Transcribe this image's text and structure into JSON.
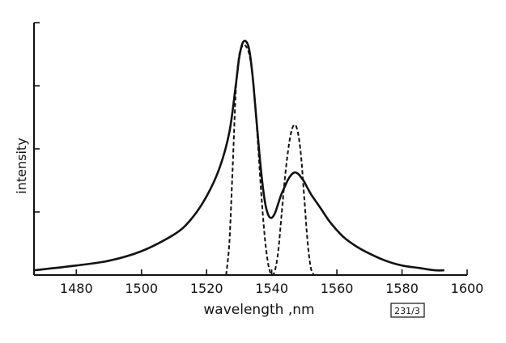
{
  "chart_data": {
    "type": "line",
    "xlabel": "wavelength ,nm",
    "ylabel": "intensity",
    "xlim": [
      1467,
      1600
    ],
    "ylim": [
      0,
      1
    ],
    "x_ticks": [
      1480,
      1500,
      1520,
      1540,
      1560,
      1580,
      1600
    ],
    "y_ticks_labeled": false,
    "grid": false,
    "series": [
      {
        "style": "solid",
        "x": [
          1467,
          1480,
          1490,
          1500,
          1510,
          1515,
          1520,
          1524,
          1527,
          1529,
          1530,
          1531,
          1532,
          1533,
          1534,
          1535,
          1536,
          1537,
          1538,
          1539,
          1540,
          1541,
          1542,
          1543,
          1544,
          1545,
          1546,
          1547,
          1548,
          1549,
          1550,
          1552,
          1555,
          1558,
          1562,
          1566,
          1570,
          1575,
          1580,
          1585,
          1590,
          1593
        ],
        "y": [
          0.02,
          0.04,
          0.06,
          0.1,
          0.17,
          0.23,
          0.33,
          0.45,
          0.6,
          0.8,
          0.91,
          0.97,
          0.98,
          0.95,
          0.85,
          0.7,
          0.54,
          0.4,
          0.3,
          0.25,
          0.24,
          0.26,
          0.3,
          0.34,
          0.37,
          0.4,
          0.42,
          0.43,
          0.425,
          0.41,
          0.39,
          0.34,
          0.28,
          0.22,
          0.16,
          0.12,
          0.09,
          0.06,
          0.04,
          0.03,
          0.02,
          0.02
        ]
      },
      {
        "style": "dashed",
        "x": [
          1526,
          1527,
          1528,
          1529,
          1530,
          1531,
          1532,
          1533,
          1534,
          1535,
          1536,
          1537,
          1538,
          1539,
          1540,
          1541,
          1542,
          1543,
          1544,
          1545,
          1546,
          1547,
          1548,
          1549,
          1550,
          1551,
          1552,
          1553
        ],
        "y": [
          0.0,
          0.14,
          0.45,
          0.78,
          0.92,
          0.96,
          0.96,
          0.93,
          0.85,
          0.7,
          0.5,
          0.3,
          0.14,
          0.04,
          0.0,
          0.02,
          0.1,
          0.25,
          0.4,
          0.52,
          0.6,
          0.63,
          0.6,
          0.5,
          0.32,
          0.14,
          0.03,
          0.0
        ]
      }
    ]
  },
  "annotations": {
    "figure_code": "231/3"
  }
}
